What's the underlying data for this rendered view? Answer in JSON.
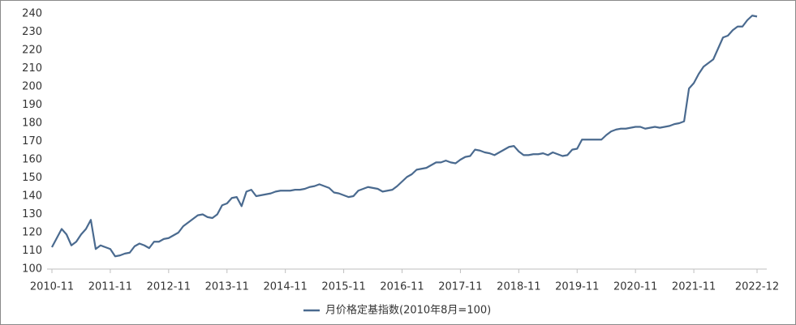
{
  "chart_data": {
    "type": "line",
    "categories": [
      "2010-11",
      null,
      null,
      null,
      null,
      null,
      null,
      null,
      null,
      null,
      null,
      null,
      "2011-11",
      null,
      null,
      null,
      null,
      null,
      null,
      null,
      null,
      null,
      null,
      null,
      "2012-11",
      null,
      null,
      null,
      null,
      null,
      null,
      null,
      null,
      null,
      null,
      null,
      "2013-11",
      null,
      null,
      null,
      null,
      null,
      null,
      null,
      null,
      null,
      null,
      null,
      "2014-11",
      null,
      null,
      null,
      null,
      null,
      null,
      null,
      null,
      null,
      null,
      null,
      "2015-11",
      null,
      null,
      null,
      null,
      null,
      null,
      null,
      null,
      null,
      null,
      null,
      "2016-11",
      null,
      null,
      null,
      null,
      null,
      null,
      null,
      null,
      null,
      null,
      null,
      "2017-11",
      null,
      null,
      null,
      null,
      null,
      null,
      null,
      null,
      null,
      null,
      null,
      "2018-11",
      null,
      null,
      null,
      null,
      null,
      null,
      null,
      null,
      null,
      null,
      null,
      "2019-11",
      null,
      null,
      null,
      null,
      null,
      null,
      null,
      null,
      null,
      null,
      null,
      "2020-11",
      null,
      null,
      null,
      null,
      null,
      null,
      null,
      null,
      null,
      null,
      null,
      "2021-11",
      null,
      null,
      null,
      null,
      null,
      null,
      null,
      null,
      null,
      null,
      null,
      null,
      "2022-12"
    ],
    "series": [
      {
        "name": "月价格定基指数(2010年8月=100)",
        "color": "#4a6a8f",
        "values": [
          112,
          117,
          122,
          119,
          113,
          115,
          119,
          122,
          127,
          111,
          113,
          112,
          111,
          107,
          107.5,
          108.5,
          109,
          112.5,
          114,
          113,
          111.5,
          115,
          115,
          116.5,
          117,
          118.5,
          120,
          123.5,
          125.5,
          127.5,
          129.5,
          130,
          128.5,
          128,
          130,
          135,
          136,
          139,
          139.5,
          134.5,
          142.5,
          143.5,
          140,
          140.5,
          141,
          141.5,
          142.5,
          143,
          143,
          143,
          143.5,
          143.5,
          144,
          145,
          145.5,
          146.5,
          145.5,
          144.5,
          142,
          141.5,
          140.5,
          139.5,
          140,
          143,
          144,
          145,
          144.5,
          144,
          142.5,
          143,
          143.5,
          145.5,
          148,
          150.5,
          152,
          154.5,
          155,
          155.5,
          157,
          158.5,
          158.5,
          159.5,
          158.5,
          158,
          160,
          161.5,
          162,
          165.5,
          165,
          164,
          163.5,
          162.5,
          164,
          165.5,
          167,
          167.5,
          164.5,
          162.5,
          162.5,
          163,
          163,
          163.5,
          162.5,
          164,
          163,
          162,
          162.5,
          165.5,
          166,
          171,
          171,
          171,
          171,
          171,
          173.5,
          175.5,
          176.5,
          177,
          177,
          177.5,
          178,
          178,
          177,
          177.5,
          178,
          177.5,
          178,
          178.5,
          179.5,
          180,
          181,
          199,
          202,
          207,
          211,
          213,
          215,
          221,
          227,
          228,
          231,
          233,
          233,
          236.5,
          239,
          238.5
        ]
      }
    ],
    "ylim": [
      100,
      240
    ],
    "yticks": [
      100,
      110,
      120,
      130,
      140,
      150,
      160,
      170,
      180,
      190,
      200,
      210,
      220,
      230,
      240
    ],
    "grid": false,
    "legend": "bottom"
  }
}
